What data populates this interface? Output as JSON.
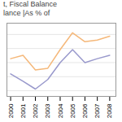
{
  "chart_data": {
    "type": "line",
    "title": "t, Fiscal Balance",
    "subtitle": "lance |As % of",
    "x": [
      2000,
      2001,
      2002,
      2003,
      2004,
      2005,
      2006,
      2007,
      2008
    ],
    "series": [
      {
        "color": "#f5b87a",
        "values": [
          3.2,
          3.8,
          1.2,
          1.5,
          4.8,
          7.8,
          6.2,
          6.5,
          7.2
        ]
      },
      {
        "color": "#9999cc",
        "values": [
          0.5,
          -0.8,
          -2.2,
          -0.5,
          2.5,
          4.8,
          2.5,
          3.2,
          3.8
        ]
      }
    ],
    "xlim": [
      1999.7,
      2008.5
    ],
    "xticks": [
      2000,
      2001,
      2002,
      2003,
      2004,
      2005,
      2006,
      2007,
      2008
    ],
    "ylim": [
      -3.5,
      9.5
    ],
    "yticks": [
      -2.5,
      0,
      2.5,
      5,
      7.5
    ],
    "grid": true,
    "tick_labels": "x"
  }
}
